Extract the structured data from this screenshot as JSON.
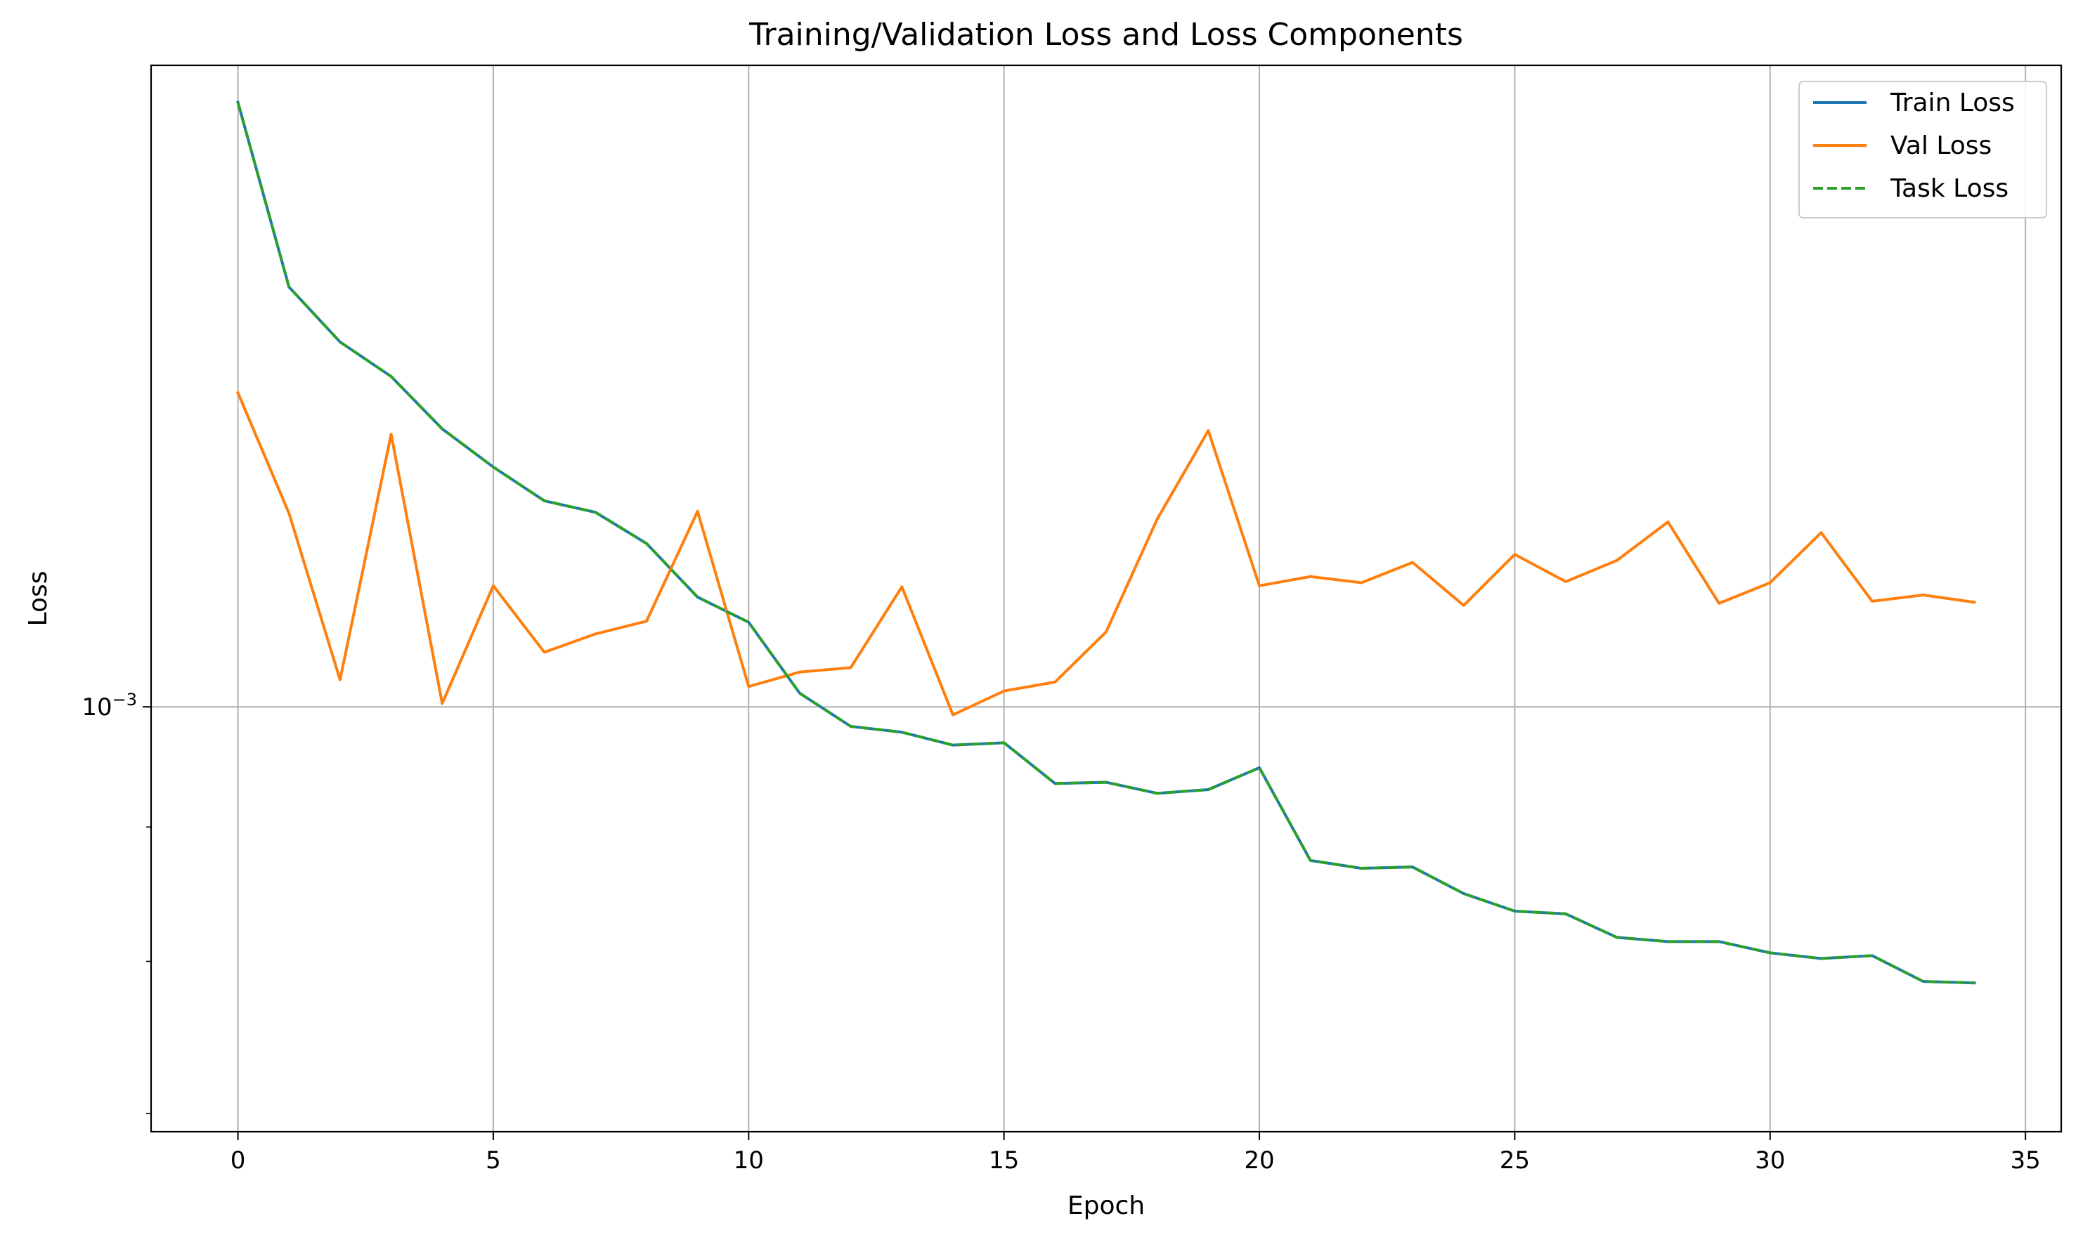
{
  "chart_data": {
    "type": "line",
    "title": "Training/Validation Loss and Loss Components",
    "xlabel": "Epoch",
    "ylabel": "Loss",
    "yscale": "log",
    "grid": true,
    "legend_position": "top-right",
    "xlim": [
      -1.7,
      35.7
    ],
    "ylim": [
      0.000689,
      0.001755
    ],
    "x_ticks": [
      0,
      5,
      10,
      15,
      20,
      25,
      30,
      35
    ],
    "x_tick_labels": [
      "0",
      "5",
      "10",
      "15",
      "20",
      "25",
      "30",
      "35"
    ],
    "y_ticks": [
      0.001
    ],
    "y_tick_labels": [
      {
        "base": "10",
        "exp": "−3"
      }
    ],
    "x": [
      0,
      1,
      2,
      3,
      4,
      5,
      6,
      7,
      8,
      9,
      10,
      11,
      12,
      13,
      14,
      15,
      16,
      17,
      18,
      19,
      20,
      21,
      22,
      23,
      24,
      25,
      26,
      27,
      28,
      29,
      30,
      31,
      32,
      33,
      34
    ],
    "series": [
      {
        "name": "Train Loss",
        "color": "#1f77b4",
        "style": "solid",
        "values": [
          0.001699,
          0.001445,
          0.001377,
          0.001336,
          0.001276,
          0.001234,
          0.001198,
          0.001186,
          0.001154,
          0.001101,
          0.001077,
          0.001012,
          0.000983,
          0.000978,
          0.000967,
          0.000969,
          0.000935,
          0.000936,
          0.000927,
          0.00093,
          0.000948,
          0.000874,
          0.000868,
          0.000869,
          0.000849,
          0.000836,
          0.000834,
          0.000817,
          0.000814,
          0.000814,
          0.000806,
          0.000802,
          0.000804,
          0.000786,
          0.000785
        ]
      },
      {
        "name": "Val Loss",
        "color": "#ff7f0e",
        "style": "solid",
        "values": [
          0.001317,
          0.001185,
          0.001024,
          0.00127,
          0.001003,
          0.001112,
          0.001049,
          0.001066,
          0.001078,
          0.001187,
          0.001018,
          0.001031,
          0.001035,
          0.001111,
          0.000993,
          0.001014,
          0.001022,
          0.001068,
          0.001179,
          0.001274,
          0.001112,
          0.001121,
          0.001115,
          0.001135,
          0.001093,
          0.001143,
          0.001116,
          0.001137,
          0.001176,
          0.001095,
          0.001115,
          0.001165,
          0.001097,
          0.001103,
          0.001096
        ]
      },
      {
        "name": "Task Loss",
        "color": "#2ca02c",
        "style": "dashed",
        "values": [
          0.001699,
          0.001445,
          0.001377,
          0.001336,
          0.001276,
          0.001234,
          0.001198,
          0.001186,
          0.001154,
          0.001101,
          0.001077,
          0.001012,
          0.000983,
          0.000978,
          0.000967,
          0.000969,
          0.000935,
          0.000936,
          0.000927,
          0.00093,
          0.000948,
          0.000874,
          0.000868,
          0.000869,
          0.000849,
          0.000836,
          0.000834,
          0.000817,
          0.000814,
          0.000814,
          0.000806,
          0.000802,
          0.000804,
          0.000786,
          0.000785
        ]
      }
    ]
  }
}
